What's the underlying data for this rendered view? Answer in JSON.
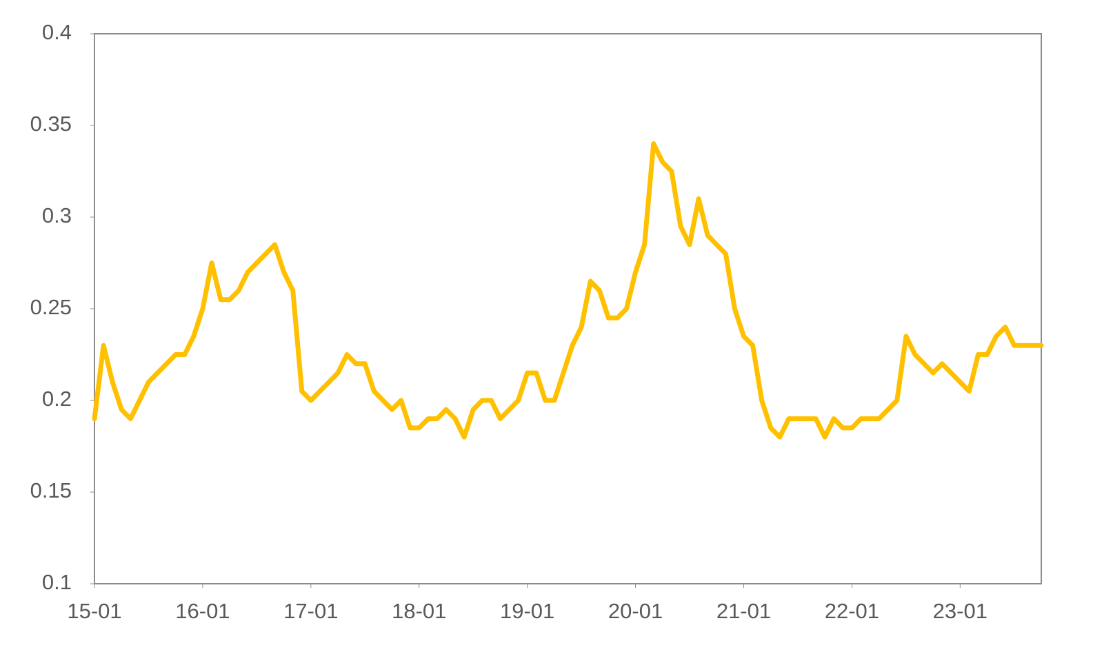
{
  "chart_data": {
    "type": "line",
    "x": [
      "15-01",
      "15-02",
      "15-03",
      "15-04",
      "15-05",
      "15-06",
      "15-07",
      "15-08",
      "15-09",
      "15-10",
      "15-11",
      "15-12",
      "16-01",
      "16-02",
      "16-03",
      "16-04",
      "16-05",
      "16-06",
      "16-07",
      "16-08",
      "16-09",
      "16-10",
      "16-11",
      "16-12",
      "17-01",
      "17-02",
      "17-03",
      "17-04",
      "17-05",
      "17-06",
      "17-07",
      "17-08",
      "17-09",
      "17-10",
      "17-11",
      "17-12",
      "18-01",
      "18-02",
      "18-03",
      "18-04",
      "18-05",
      "18-06",
      "18-07",
      "18-08",
      "18-09",
      "18-10",
      "18-11",
      "18-12",
      "19-01",
      "19-02",
      "19-03",
      "19-04",
      "19-05",
      "19-06",
      "19-07",
      "19-08",
      "19-09",
      "19-10",
      "19-11",
      "19-12",
      "20-01",
      "20-02",
      "20-03",
      "20-04",
      "20-05",
      "20-06",
      "20-07",
      "20-08",
      "20-09",
      "20-10",
      "20-11",
      "20-12",
      "21-01",
      "21-02",
      "21-03",
      "21-04",
      "21-05",
      "21-06",
      "21-07",
      "21-08",
      "21-09",
      "21-10",
      "21-11",
      "21-12",
      "22-01",
      "22-02",
      "22-03",
      "22-04",
      "22-05",
      "22-06",
      "22-07",
      "22-08",
      "22-09",
      "22-10",
      "22-11",
      "22-12",
      "23-01",
      "23-02",
      "23-03",
      "23-04",
      "23-05",
      "23-06",
      "23-07",
      "23-08",
      "23-09",
      "23-10"
    ],
    "series": [
      {
        "color": "#FFC000",
        "values": [
          0.19,
          0.23,
          0.21,
          0.195,
          0.19,
          0.2,
          0.21,
          0.215,
          0.22,
          0.225,
          0.225,
          0.235,
          0.25,
          0.275,
          0.255,
          0.255,
          0.26,
          0.27,
          0.275,
          0.28,
          0.285,
          0.27,
          0.26,
          0.205,
          0.2,
          0.205,
          0.21,
          0.215,
          0.225,
          0.22,
          0.22,
          0.205,
          0.2,
          0.195,
          0.2,
          0.185,
          0.185,
          0.19,
          0.19,
          0.195,
          0.19,
          0.18,
          0.195,
          0.2,
          0.2,
          0.19,
          0.195,
          0.2,
          0.215,
          0.215,
          0.2,
          0.2,
          0.215,
          0.23,
          0.24,
          0.265,
          0.26,
          0.245,
          0.245,
          0.25,
          0.27,
          0.285,
          0.34,
          0.33,
          0.325,
          0.295,
          0.285,
          0.31,
          0.29,
          0.285,
          0.28,
          0.25,
          0.235,
          0.23,
          0.2,
          0.185,
          0.18,
          0.19,
          0.19,
          0.19,
          0.19,
          0.18,
          0.19,
          0.185,
          0.185,
          0.19,
          0.19,
          0.19,
          0.195,
          0.2,
          0.235,
          0.225,
          0.22,
          0.215,
          0.22,
          0.215,
          0.21,
          0.205,
          0.225,
          0.225,
          0.235,
          0.24,
          0.23,
          0.23,
          0.23,
          0.23
        ]
      }
    ],
    "xlim": [
      "15-01",
      "23-10"
    ],
    "xticks": [
      "15-01",
      "16-01",
      "17-01",
      "18-01",
      "19-01",
      "20-01",
      "21-01",
      "22-01",
      "23-01"
    ],
    "ylim": [
      0.1,
      0.4
    ],
    "yticks": [
      0.1,
      0.15,
      0.2,
      0.25,
      0.3,
      0.35,
      0.4
    ],
    "grid": false
  }
}
